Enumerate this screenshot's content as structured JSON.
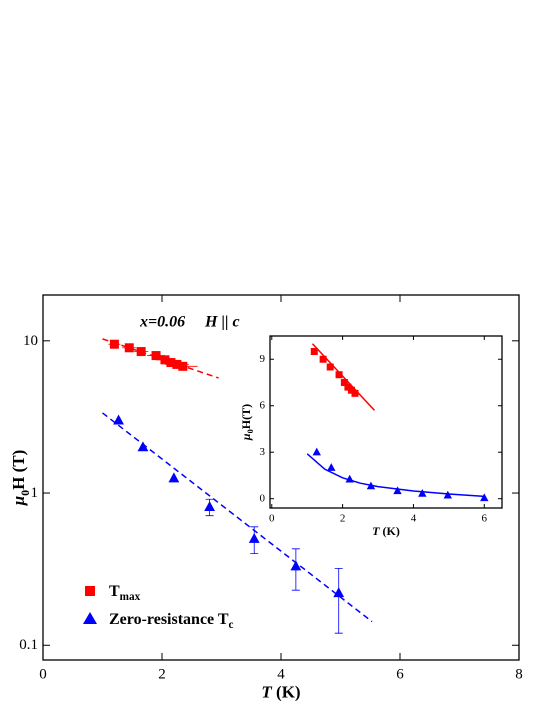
{
  "chart_data": [
    {
      "type": "scatter",
      "annotation": {
        "composition": "x=0.06",
        "field": "H || c"
      },
      "xlabel": {
        "main": "T",
        "rest": " (K)"
      },
      "ylabel": {
        "main": "μ",
        "sub": "0",
        "rest": "H (T)"
      },
      "xlim": [
        0,
        8
      ],
      "xticks": [
        0,
        2,
        4,
        6,
        8
      ],
      "ylim": [
        0.08,
        20
      ],
      "yticks": [
        0.1,
        1,
        10
      ],
      "log_y": true,
      "legend": "lower left",
      "series": [
        {
          "name": "T",
          "name_sub": "max",
          "marker": "square",
          "color": "#ff0000",
          "x": [
            1.2,
            1.45,
            1.65,
            1.9,
            2.05,
            2.15,
            2.25,
            2.35
          ],
          "values": [
            9.5,
            9.0,
            8.5,
            8.0,
            7.5,
            7.2,
            7.0,
            6.8
          ],
          "xerr": [
            0.1,
            0.12,
            0.12,
            0.15,
            0.15,
            0.15,
            0.2,
            0.25
          ]
        },
        {
          "name": "Zero-resistance T",
          "name_sub": "c",
          "marker": "triangle",
          "color": "#0000ff",
          "x": [
            1.27,
            1.68,
            2.2,
            2.8,
            3.55,
            4.25,
            4.97
          ],
          "values": [
            3.0,
            2.0,
            1.25,
            0.81,
            0.5,
            0.33,
            0.22
          ],
          "yerr": [
            null,
            null,
            null,
            0.1,
            0.1,
            0.1,
            0.1
          ]
        }
      ],
      "fits": [
        {
          "color": "#ff0000",
          "dashed": true,
          "x": [
            1.0,
            2.95
          ],
          "values": [
            10.3,
            5.7
          ]
        },
        {
          "color": "#0000ff",
          "dashed": true,
          "x": [
            1.0,
            5.53
          ],
          "values": [
            3.36,
            0.143
          ]
        }
      ]
    },
    {
      "type": "scatter",
      "xlabel": {
        "main": "T",
        "rest": " (K)"
      },
      "ylabel": {
        "main": "μ",
        "sub": "0",
        "rest": "H(T)"
      },
      "xlim": [
        -0.05,
        6.5
      ],
      "xticks": [
        0,
        2,
        4,
        6
      ],
      "ylim": [
        -0.6,
        10.5
      ],
      "yticks": [
        0,
        3,
        6,
        9
      ],
      "log_y": false,
      "series": [
        {
          "marker": "square",
          "color": "#ff0000",
          "x": [
            1.2,
            1.45,
            1.65,
            1.9,
            2.05,
            2.15,
            2.25,
            2.35
          ],
          "values": [
            9.5,
            9.0,
            8.5,
            8.0,
            7.5,
            7.2,
            7.0,
            6.8
          ]
        },
        {
          "marker": "triangle",
          "color": "#0000ff",
          "x": [
            1.27,
            1.68,
            2.2,
            2.8,
            3.55,
            4.25,
            4.97,
            6.0
          ],
          "values": [
            3.0,
            2.0,
            1.25,
            0.81,
            0.5,
            0.33,
            0.22,
            0.05
          ]
        }
      ],
      "fits": [
        {
          "color": "#ff0000",
          "dashed": false,
          "x": [
            1.15,
            2.9
          ],
          "values": [
            10.0,
            5.7
          ]
        },
        {
          "color": "#0000ff",
          "dashed": false,
          "x": [
            1.0,
            1.5,
            2.0,
            2.5,
            3.0,
            4.0,
            5.0,
            6.0
          ],
          "values": [
            2.9,
            1.9,
            1.35,
            1.0,
            0.78,
            0.5,
            0.3,
            0.15
          ]
        }
      ]
    }
  ]
}
